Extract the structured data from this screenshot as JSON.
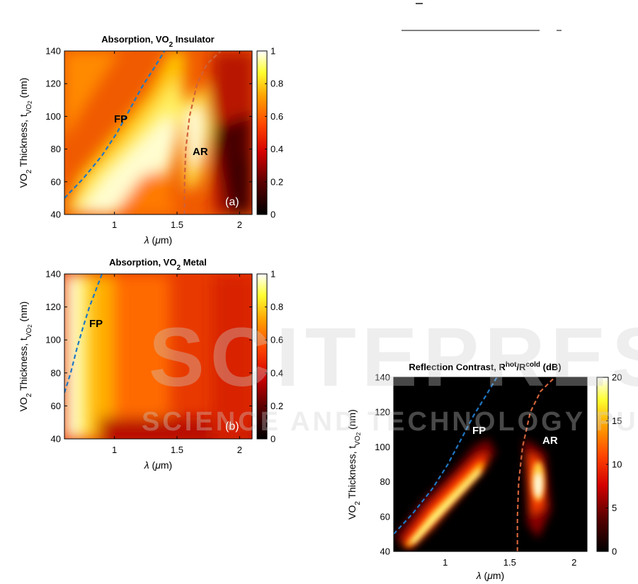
{
  "chart_data": [
    {
      "id": "a",
      "type": "heatmap",
      "title": "Absorption, VO₂ Insulator",
      "xlabel": "λ (μm)",
      "ylabel": "VO₂ Thickness, t_VO₂ (nm)",
      "xlim": [
        0.6,
        2.1
      ],
      "ylim": [
        40,
        140
      ],
      "xticks": [
        "1",
        "1.5",
        "2"
      ],
      "yticks": [
        "40",
        "60",
        "80",
        "100",
        "120",
        "140"
      ],
      "colorbar": {
        "range": [
          0,
          1
        ],
        "ticks": [
          "0",
          "0.2",
          "0.4",
          "0.6",
          "0.8",
          "1"
        ]
      },
      "annotations": [
        "FP",
        "AR"
      ],
      "panel_label": "(a)",
      "curves": [
        {
          "label": "FP",
          "color": "#1f77c4",
          "points": [
            [
              0.6,
              50
            ],
            [
              0.75,
              62
            ],
            [
              0.9,
              76
            ],
            [
              1.02,
              90
            ],
            [
              1.12,
              104
            ],
            [
              1.22,
              118
            ],
            [
              1.32,
              130
            ],
            [
              1.4,
              140
            ]
          ]
        },
        {
          "label": "AR",
          "color": "#d0623a",
          "points": [
            [
              1.56,
              40
            ],
            [
              1.56,
              60
            ],
            [
              1.57,
              80
            ],
            [
              1.6,
              100
            ],
            [
              1.66,
              120
            ],
            [
              1.74,
              132
            ],
            [
              1.85,
              140
            ]
          ]
        }
      ]
    },
    {
      "id": "b",
      "type": "heatmap",
      "title": "Absorption, VO₂ Metal",
      "xlabel": "λ (μm)",
      "ylabel": "VO₂ Thickness, t_VO₂ (nm)",
      "xlim": [
        0.6,
        2.1
      ],
      "ylim": [
        40,
        140
      ],
      "xticks": [
        "1",
        "1.5",
        "2"
      ],
      "yticks": [
        "40",
        "60",
        "80",
        "100",
        "120",
        "140"
      ],
      "colorbar": {
        "range": [
          0,
          1
        ],
        "ticks": [
          "0",
          "0.2",
          "0.4",
          "0.6",
          "0.8",
          "1"
        ]
      },
      "annotations": [
        "FP"
      ],
      "panel_label": "(b)",
      "curves": [
        {
          "label": "FP",
          "color": "#1f77c4",
          "points": [
            [
              0.6,
              68
            ],
            [
              0.65,
              80
            ],
            [
              0.7,
              95
            ],
            [
              0.75,
              108
            ],
            [
              0.8,
              120
            ],
            [
              0.85,
              130
            ],
            [
              0.9,
              140
            ]
          ]
        }
      ]
    },
    {
      "id": "c",
      "type": "heatmap",
      "title": "Reflection Contrast, R^hot/R^cold (dB)",
      "xlabel": "λ (μm)",
      "ylabel": "VO₂ Thickness, t_VO₂ (nm)",
      "xlim": [
        0.6,
        2.1
      ],
      "ylim": [
        40,
        140
      ],
      "xticks": [
        "1",
        "1.5",
        "2"
      ],
      "yticks": [
        "40",
        "60",
        "80",
        "100",
        "120",
        "140"
      ],
      "colorbar": {
        "range": [
          0,
          20
        ],
        "ticks": [
          "0",
          "5",
          "10",
          "15",
          "20"
        ]
      },
      "annotations": [
        "FP",
        "AR"
      ],
      "curves": [
        {
          "label": "FP",
          "color": "#1f77c4",
          "points": [
            [
              0.6,
              50
            ],
            [
              0.75,
              62
            ],
            [
              0.9,
              76
            ],
            [
              1.02,
              90
            ],
            [
              1.12,
              104
            ],
            [
              1.22,
              118
            ],
            [
              1.32,
              130
            ],
            [
              1.4,
              140
            ]
          ]
        },
        {
          "label": "AR",
          "color": "#d0623a",
          "points": [
            [
              1.56,
              40
            ],
            [
              1.56,
              60
            ],
            [
              1.57,
              80
            ],
            [
              1.6,
              100
            ],
            [
              1.66,
              120
            ],
            [
              1.74,
              132
            ],
            [
              1.85,
              140
            ]
          ]
        }
      ]
    }
  ],
  "text": {
    "title_a_pre": "Absorption, VO",
    "title_a_sub": "2",
    "title_a_post": " Insulator",
    "title_b_pre": "Absorption, VO",
    "title_b_sub": "2",
    "title_b_post": " Metal",
    "title_c_pre": "Reflection Contrast, R",
    "title_c_sup1": "hot",
    "title_c_mid": "/R",
    "title_c_sup2": "cold",
    "title_c_post": " (dB)",
    "ylab_pre": "VO",
    "ylab_sub1": "2",
    "ylab_mid": " Thickness, t",
    "ylab_sub2": "VO",
    "ylab_sub3": "2",
    "ylab_post": " (nm)",
    "xlab_lambda": "λ",
    "xlab_unit_pre": " (",
    "xlab_mu": "μ",
    "xlab_unit_post": "m)",
    "watermark_main": "SCITEPRESS",
    "watermark_sub": "SCIENCE AND TECHNOLOGY PUBLICATIONS"
  }
}
